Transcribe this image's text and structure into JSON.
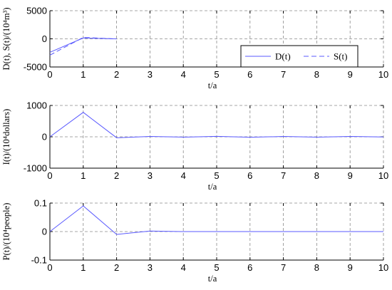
{
  "chart_data": [
    {
      "type": "line",
      "xlabel": "t/a",
      "ylabel": "D(t), S(t)/(10⁴m³)",
      "xlim": [
        0,
        10
      ],
      "ylim": [
        -5000,
        5000
      ],
      "xticks": [
        "0",
        "1",
        "2",
        "3",
        "4",
        "5",
        "6",
        "7",
        "8",
        "9",
        "10"
      ],
      "yticks": [
        "-5000",
        "0",
        "5000"
      ],
      "ytick_values": [
        -5000,
        0,
        5000
      ],
      "grid": true,
      "legend": {
        "position": "right-middle"
      },
      "series": [
        {
          "name": "D(t)",
          "style": "solid",
          "color": "#5a5aff",
          "x": [
            0,
            1,
            2
          ],
          "y": [
            -2400,
            150,
            0
          ]
        },
        {
          "name": "S(t)",
          "style": "dashed",
          "color": "#5a5aff",
          "x": [
            0,
            1,
            2
          ],
          "y": [
            -2900,
            250,
            -20
          ]
        }
      ]
    },
    {
      "type": "line",
      "xlabel": "t/a",
      "ylabel": "I(t)/(10⁴dollars)",
      "xlim": [
        0,
        10
      ],
      "ylim": [
        -1000,
        1000
      ],
      "xticks": [
        "0",
        "1",
        "2",
        "3",
        "4",
        "5",
        "6",
        "7",
        "8",
        "9",
        "10"
      ],
      "yticks": [
        "-1000",
        "0",
        "1000"
      ],
      "ytick_values": [
        -1000,
        0,
        1000
      ],
      "grid": true,
      "series": [
        {
          "style": "solid",
          "color": "#5a5aff",
          "x": [
            0,
            1,
            2,
            3,
            4,
            5,
            6,
            7,
            8,
            9,
            10
          ],
          "y": [
            0,
            780,
            -30,
            10,
            -10,
            15,
            -15,
            10,
            -10,
            12,
            -5
          ]
        }
      ]
    },
    {
      "type": "line",
      "xlabel": "t/a",
      "ylabel": "P(t)/(10⁴people)",
      "xlim": [
        0,
        10
      ],
      "ylim": [
        -0.1,
        0.1
      ],
      "xticks": [
        "0",
        "1",
        "2",
        "3",
        "4",
        "5",
        "6",
        "7",
        "8",
        "9",
        "10"
      ],
      "yticks": [
        "-0.1",
        "0",
        "0.1"
      ],
      "ytick_values": [
        -0.1,
        0,
        0.1
      ],
      "grid": true,
      "series": [
        {
          "style": "solid",
          "color": "#5a5aff",
          "x": [
            0,
            1,
            2,
            3,
            4,
            5,
            6,
            7,
            8,
            9,
            10
          ],
          "y": [
            0,
            0.09,
            -0.01,
            0.002,
            0,
            0,
            0,
            0,
            0,
            0,
            0
          ]
        }
      ]
    }
  ]
}
